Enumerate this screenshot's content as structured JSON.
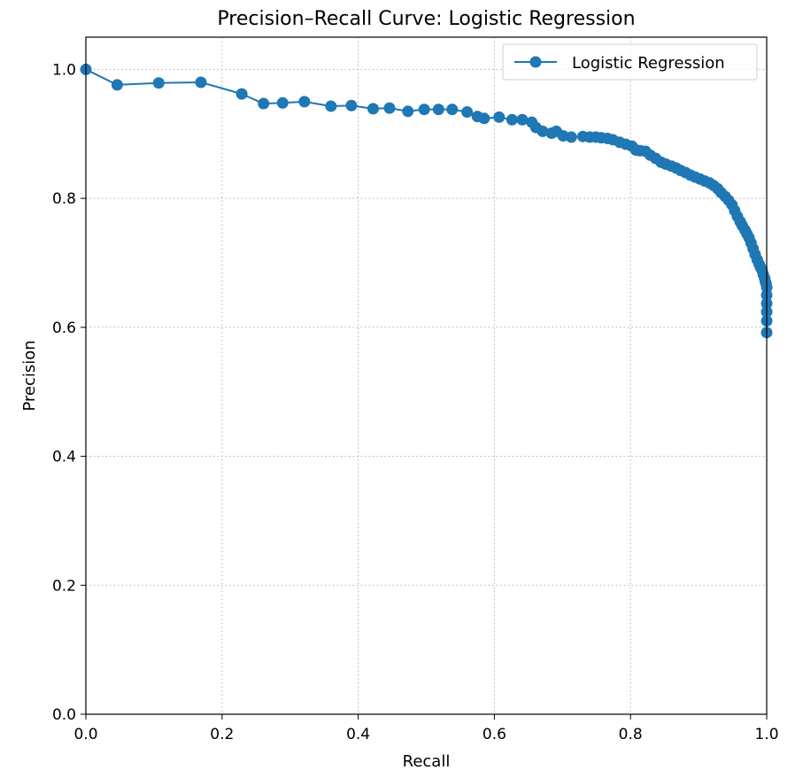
{
  "chart_data": {
    "type": "line",
    "title": "Precision–Recall Curve: Logistic Regression",
    "xlabel": "Recall",
    "ylabel": "Precision",
    "xlim": [
      0.0,
      1.0
    ],
    "ylim": [
      0.0,
      1.05
    ],
    "xticks": [
      "0.0",
      "0.2",
      "0.4",
      "0.6",
      "0.8",
      "1.0"
    ],
    "yticks": [
      "0.0",
      "0.2",
      "0.4",
      "0.6",
      "0.8",
      "1.0"
    ],
    "grid": true,
    "legend_position": "top-right",
    "series": [
      {
        "name": "Logistic Regression",
        "color": "#1f77b4",
        "marker": "circle",
        "x": [
          0.0,
          0.046,
          0.107,
          0.169,
          0.229,
          0.261,
          0.289,
          0.321,
          0.36,
          0.39,
          0.422,
          0.446,
          0.473,
          0.497,
          0.518,
          0.538,
          0.56,
          0.575,
          0.585,
          0.607,
          0.626,
          0.641,
          0.655,
          0.661,
          0.671,
          0.684,
          0.691,
          0.701,
          0.713,
          0.73,
          0.74,
          0.749,
          0.757,
          0.766,
          0.774,
          0.784,
          0.793,
          0.802,
          0.808,
          0.814,
          0.822,
          0.829,
          0.837,
          0.845,
          0.852,
          0.86,
          0.867,
          0.874,
          0.881,
          0.888,
          0.895,
          0.902,
          0.909,
          0.916,
          0.922,
          0.928,
          0.933,
          0.939,
          0.944,
          0.949,
          0.953,
          0.957,
          0.961,
          0.964,
          0.968,
          0.971,
          0.974,
          0.977,
          0.98,
          0.983,
          0.986,
          0.989,
          0.991,
          0.993,
          0.995,
          0.997,
          0.998,
          0.999,
          1.0,
          1.0,
          1.0,
          1.0,
          1.0,
          1.0
        ],
        "y": [
          1.0,
          0.976,
          0.979,
          0.98,
          0.962,
          0.947,
          0.948,
          0.95,
          0.943,
          0.944,
          0.939,
          0.94,
          0.935,
          0.938,
          0.938,
          0.938,
          0.934,
          0.927,
          0.924,
          0.926,
          0.922,
          0.922,
          0.918,
          0.91,
          0.904,
          0.901,
          0.904,
          0.897,
          0.895,
          0.896,
          0.895,
          0.895,
          0.894,
          0.893,
          0.891,
          0.887,
          0.884,
          0.881,
          0.875,
          0.874,
          0.873,
          0.867,
          0.862,
          0.856,
          0.853,
          0.85,
          0.847,
          0.843,
          0.84,
          0.836,
          0.833,
          0.83,
          0.827,
          0.824,
          0.82,
          0.815,
          0.809,
          0.803,
          0.797,
          0.79,
          0.781,
          0.772,
          0.764,
          0.758,
          0.751,
          0.745,
          0.739,
          0.731,
          0.722,
          0.713,
          0.705,
          0.698,
          0.693,
          0.689,
          0.682,
          0.676,
          0.671,
          0.668,
          0.662,
          0.65,
          0.637,
          0.624,
          0.61,
          0.592
        ]
      }
    ]
  }
}
